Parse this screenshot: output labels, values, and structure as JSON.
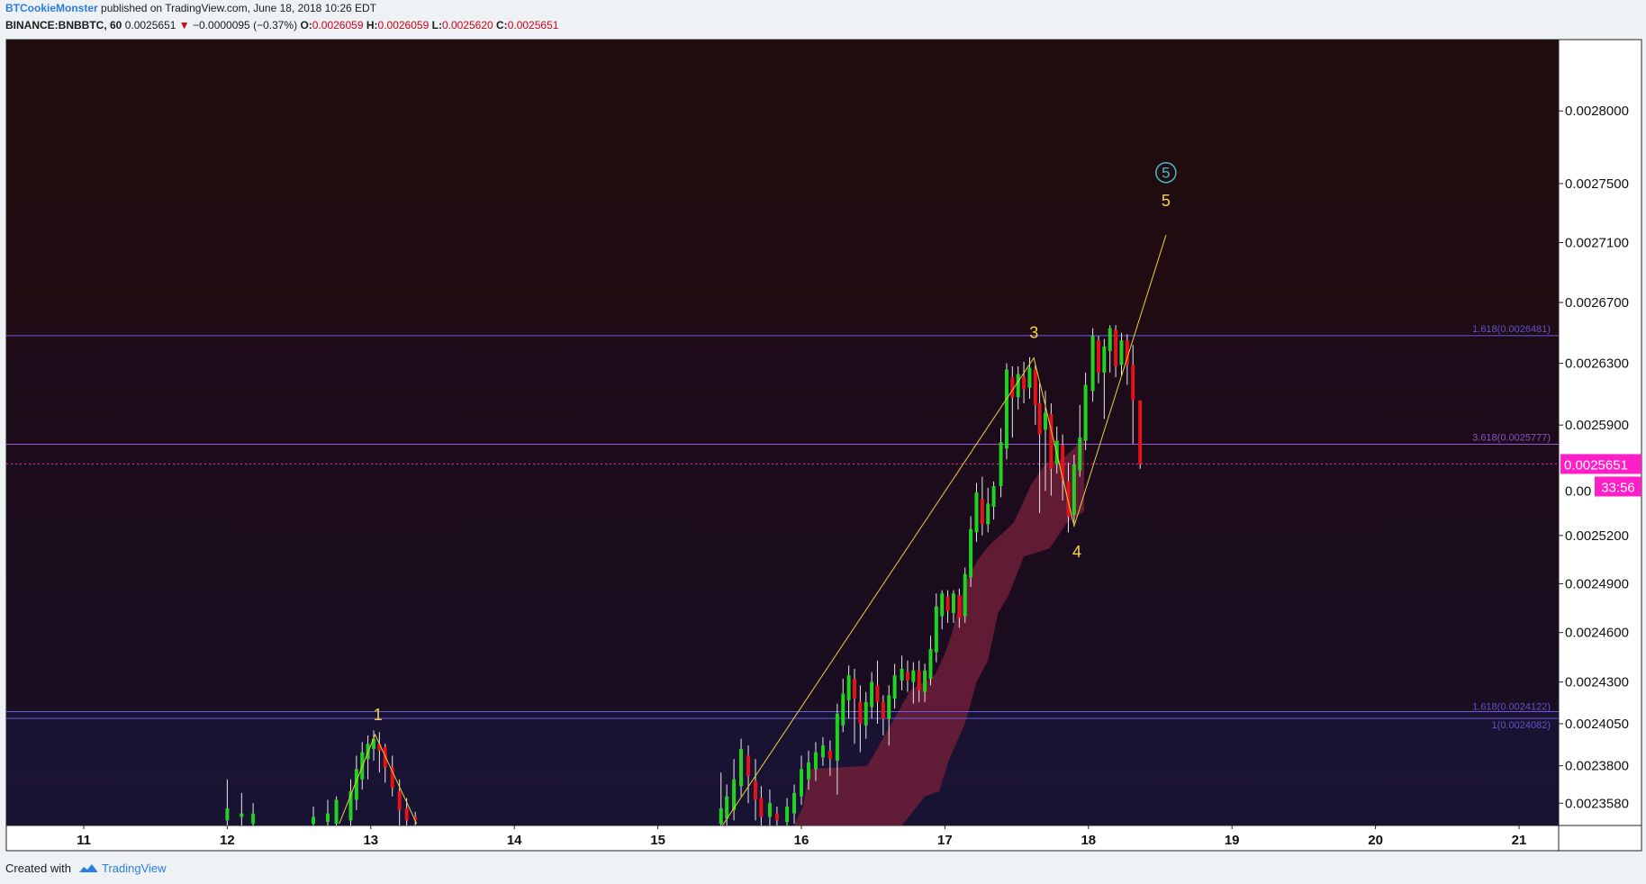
{
  "header": {
    "author": "BTCookieMonster",
    "published_text": "published on TradingView.com, June 18, 2018 10:26 EDT"
  },
  "symbol_line": {
    "symbol": "BINANCE:BNBBTC, 60",
    "last": "0.0025651",
    "change": "−0.0000095 (−0.37%)",
    "open_label": "O:",
    "open": "0.0026059",
    "high_label": "H:",
    "high": "0.0026059",
    "low_label": "L:",
    "low": "0.0025620",
    "close_label": "C:",
    "close": "0.0025651",
    "arrow": "▼"
  },
  "footer": {
    "created_with": "Created with",
    "brand": "TradingView"
  },
  "colors": {
    "up": "#22d122",
    "down": "#e3121b",
    "neutral": "#e8e8e8",
    "wave_line": "#e9d236",
    "wave_label": "#f5d442",
    "circled_label": "#49b9c8",
    "fib_line": "#6a5ae0",
    "fib_line_2": "#9b59d0",
    "price_tag": "#ff1ec8",
    "cloud": "#6e1f3a"
  },
  "chart_data": {
    "type": "candlestick",
    "instrument": "BINANCE:BNBBTC",
    "interval": "60",
    "x_axis": {
      "ticks": [
        "11",
        "12",
        "13",
        "14",
        "15",
        "16",
        "17",
        "18",
        "19",
        "20",
        "21"
      ],
      "range": [
        10.45,
        21.25
      ]
    },
    "y_axis": {
      "scale": "log",
      "range": [
        0.002345,
        0.00285
      ],
      "ticks": [
        "0.0028000",
        "0.0027500",
        "0.0027100",
        "0.0026700",
        "0.0026300",
        "0.0025900",
        "0.0025200",
        "0.0024900",
        "0.0024600",
        "0.0024300",
        "0.0024050",
        "0.0023800",
        "0.0023580"
      ]
    },
    "last_price": {
      "value": "0.0025651",
      "countdown": "33:56",
      "partial_axis_label": "0.00"
    },
    "fib_levels": [
      {
        "label": "1.618(0.0026481)",
        "value": 0.0026481
      },
      {
        "label": "3.618(0.0025777)",
        "value": 0.0025777
      },
      {
        "label": "1.618(0.0024122)",
        "value": 0.0024122
      },
      {
        "label": "1(0.0024082)",
        "value": 0.0024082
      }
    ],
    "wave_path": [
      {
        "day": 12.78,
        "price": 0.002346
      },
      {
        "day": 13.03,
        "price": 0.0023985
      },
      {
        "day": 13.32,
        "price": 0.002346
      }
    ],
    "wave_path_2": [
      {
        "day": 15.45,
        "price": 0.002345
      },
      {
        "day": 17.62,
        "price": 0.0026335
      },
      {
        "day": 17.9,
        "price": 0.002526
      },
      {
        "day": 18.54,
        "price": 0.002715
      }
    ],
    "wave_labels": [
      {
        "text": "1",
        "day": 13.05,
        "price": 0.002407
      },
      {
        "text": "3",
        "day": 17.62,
        "price": 0.0026465
      },
      {
        "text": "4",
        "day": 17.92,
        "price": 0.0025065
      },
      {
        "text": "5",
        "day": 18.54,
        "price": 0.0027345
      }
    ],
    "circled_label": {
      "text": "5",
      "day": 18.54,
      "price": 0.0027575
    },
    "candles": [
      {
        "day": 12.0,
        "open": 0.002348,
        "close": 0.002355,
        "high": 0.002372,
        "low": 0.002345
      },
      {
        "day": 12.1,
        "open": 0.00235,
        "close": 0.002352,
        "high": 0.002364,
        "low": 0.002345
      },
      {
        "day": 12.18,
        "open": 0.002346,
        "close": 0.002352,
        "high": 0.002358,
        "low": 0.002345
      },
      {
        "day": 12.6,
        "open": 0.002346,
        "close": 0.00235,
        "high": 0.002356,
        "low": 0.002345
      },
      {
        "day": 12.7,
        "open": 0.002347,
        "close": 0.002352,
        "high": 0.00236,
        "low": 0.002345
      },
      {
        "day": 12.76,
        "open": 0.002346,
        "close": 0.00236,
        "high": 0.002362,
        "low": 0.002345
      },
      {
        "day": 12.86,
        "open": 0.002348,
        "close": 0.002365,
        "high": 0.002372,
        "low": 0.002345
      },
      {
        "day": 12.9,
        "open": 0.00236,
        "close": 0.002378,
        "high": 0.002386,
        "low": 0.002354
      },
      {
        "day": 12.94,
        "open": 0.002372,
        "close": 0.002388,
        "high": 0.002394,
        "low": 0.002366
      },
      {
        "day": 12.98,
        "open": 0.002384,
        "close": 0.002393,
        "high": 0.002398,
        "low": 0.002372
      },
      {
        "day": 13.02,
        "open": 0.00239,
        "close": 0.002396,
        "high": 0.002401,
        "low": 0.002383
      },
      {
        "day": 13.06,
        "open": 0.002393,
        "close": 0.002389,
        "high": 0.0024,
        "low": 0.002376
      },
      {
        "day": 13.1,
        "open": 0.002391,
        "close": 0.002379,
        "high": 0.002393,
        "low": 0.00237
      },
      {
        "day": 13.15,
        "open": 0.002379,
        "close": 0.002367,
        "high": 0.002386,
        "low": 0.002362
      },
      {
        "day": 13.2,
        "open": 0.002365,
        "close": 0.002354,
        "high": 0.002372,
        "low": 0.002345
      },
      {
        "day": 13.25,
        "open": 0.002355,
        "close": 0.002348,
        "high": 0.002361,
        "low": 0.002345
      },
      {
        "day": 13.31,
        "open": 0.00235,
        "close": 0.002348,
        "high": 0.002353,
        "low": 0.002345
      },
      {
        "day": 15.44,
        "open": 0.002346,
        "close": 0.002355,
        "high": 0.002376,
        "low": 0.002345
      },
      {
        "day": 15.48,
        "open": 0.002349,
        "close": 0.002362,
        "high": 0.002369,
        "low": 0.002345
      },
      {
        "day": 15.53,
        "open": 0.002354,
        "close": 0.002372,
        "high": 0.002384,
        "low": 0.002348
      },
      {
        "day": 15.58,
        "open": 0.002368,
        "close": 0.00239,
        "high": 0.002396,
        "low": 0.002362
      },
      {
        "day": 15.63,
        "open": 0.002386,
        "close": 0.002374,
        "high": 0.002392,
        "low": 0.002358
      },
      {
        "day": 15.68,
        "open": 0.002371,
        "close": 0.00236,
        "high": 0.002384,
        "low": 0.002348
      },
      {
        "day": 15.72,
        "open": 0.002361,
        "close": 0.00235,
        "high": 0.002368,
        "low": 0.002345
      },
      {
        "day": 15.78,
        "open": 0.00235,
        "close": 0.002358,
        "high": 0.002366,
        "low": 0.002345
      },
      {
        "day": 15.83,
        "open": 0.002352,
        "close": 0.002348,
        "high": 0.002356,
        "low": 0.002345
      },
      {
        "day": 15.9,
        "open": 0.002347,
        "close": 0.002356,
        "high": 0.002361,
        "low": 0.002345
      },
      {
        "day": 15.95,
        "open": 0.002352,
        "close": 0.002364,
        "high": 0.002369,
        "low": 0.002346
      },
      {
        "day": 16.0,
        "open": 0.002362,
        "close": 0.002378,
        "high": 0.002386,
        "low": 0.002357
      },
      {
        "day": 16.05,
        "open": 0.002372,
        "close": 0.002382,
        "high": 0.002389,
        "low": 0.002366
      },
      {
        "day": 16.1,
        "open": 0.002378,
        "close": 0.002388,
        "high": 0.002394,
        "low": 0.002371
      },
      {
        "day": 16.15,
        "open": 0.002385,
        "close": 0.002392,
        "high": 0.002397,
        "low": 0.00238
      },
      {
        "day": 16.2,
        "open": 0.002389,
        "close": 0.002384,
        "high": 0.002395,
        "low": 0.002374
      },
      {
        "day": 16.25,
        "open": 0.002383,
        "close": 0.002411,
        "high": 0.002417,
        "low": 0.002363
      },
      {
        "day": 16.29,
        "open": 0.002404,
        "close": 0.002423,
        "high": 0.002432,
        "low": 0.0024
      },
      {
        "day": 16.33,
        "open": 0.002419,
        "close": 0.002434,
        "high": 0.00244,
        "low": 0.002408
      },
      {
        "day": 16.37,
        "open": 0.002432,
        "close": 0.00242,
        "high": 0.002438,
        "low": 0.002393
      },
      {
        "day": 16.41,
        "open": 0.002418,
        "close": 0.002405,
        "high": 0.002428,
        "low": 0.002388
      },
      {
        "day": 16.45,
        "open": 0.002404,
        "close": 0.002418,
        "high": 0.002424,
        "low": 0.002396
      },
      {
        "day": 16.49,
        "open": 0.002415,
        "close": 0.00243,
        "high": 0.002436,
        "low": 0.002408
      },
      {
        "day": 16.53,
        "open": 0.002428,
        "close": 0.002418,
        "high": 0.002443,
        "low": 0.002405
      },
      {
        "day": 16.57,
        "open": 0.002418,
        "close": 0.002408,
        "high": 0.002422,
        "low": 0.002398
      },
      {
        "day": 16.61,
        "open": 0.002408,
        "close": 0.002422,
        "high": 0.002428,
        "low": 0.002392
      },
      {
        "day": 16.65,
        "open": 0.00242,
        "close": 0.002434,
        "high": 0.002441,
        "low": 0.002414
      },
      {
        "day": 16.7,
        "open": 0.002431,
        "close": 0.002438,
        "high": 0.002446,
        "low": 0.002425
      },
      {
        "day": 16.74,
        "open": 0.002436,
        "close": 0.002431,
        "high": 0.002443,
        "low": 0.002424
      },
      {
        "day": 16.78,
        "open": 0.00243,
        "close": 0.002437,
        "high": 0.002442,
        "low": 0.002417
      },
      {
        "day": 16.82,
        "open": 0.002437,
        "close": 0.002425,
        "high": 0.002443,
        "low": 0.002418
      },
      {
        "day": 16.86,
        "open": 0.002424,
        "close": 0.002437,
        "high": 0.002441,
        "low": 0.002418
      },
      {
        "day": 16.9,
        "open": 0.002432,
        "close": 0.00245,
        "high": 0.002458,
        "low": 0.002428
      },
      {
        "day": 16.94,
        "open": 0.002448,
        "close": 0.002476,
        "high": 0.002484,
        "low": 0.002442
      },
      {
        "day": 16.98,
        "open": 0.00247,
        "close": 0.002484,
        "high": 0.002486,
        "low": 0.002462
      },
      {
        "day": 17.02,
        "open": 0.002482,
        "close": 0.002473,
        "high": 0.002486,
        "low": 0.002466
      },
      {
        "day": 17.06,
        "open": 0.002472,
        "close": 0.002484,
        "high": 0.002486,
        "low": 0.002466
      },
      {
        "day": 17.1,
        "open": 0.002483,
        "close": 0.002469,
        "high": 0.002487,
        "low": 0.002463
      },
      {
        "day": 17.14,
        "open": 0.00247,
        "close": 0.002496,
        "high": 0.0025,
        "low": 0.002466
      },
      {
        "day": 17.18,
        "open": 0.002494,
        "close": 0.002524,
        "high": 0.002532,
        "low": 0.002488
      },
      {
        "day": 17.22,
        "open": 0.002522,
        "close": 0.002547,
        "high": 0.002553,
        "low": 0.002516
      },
      {
        "day": 17.26,
        "open": 0.002543,
        "close": 0.002527,
        "high": 0.002557,
        "low": 0.00252
      },
      {
        "day": 17.3,
        "open": 0.002527,
        "close": 0.00254,
        "high": 0.00255,
        "low": 0.002522
      },
      {
        "day": 17.34,
        "open": 0.002538,
        "close": 0.002551,
        "high": 0.002554,
        "low": 0.00253
      },
      {
        "day": 17.39,
        "open": 0.002551,
        "close": 0.002579,
        "high": 0.002588,
        "low": 0.002544
      },
      {
        "day": 17.43,
        "open": 0.002575,
        "close": 0.002626,
        "high": 0.00263,
        "low": 0.002568
      },
      {
        "day": 17.47,
        "open": 0.002621,
        "close": 0.002608,
        "high": 0.002628,
        "low": 0.002582
      },
      {
        "day": 17.51,
        "open": 0.002608,
        "close": 0.002623,
        "high": 0.002628,
        "low": 0.0026
      },
      {
        "day": 17.55,
        "open": 0.002621,
        "close": 0.002613,
        "high": 0.002631,
        "low": 0.002604
      },
      {
        "day": 17.59,
        "open": 0.002614,
        "close": 0.002627,
        "high": 0.002634,
        "low": 0.002607
      },
      {
        "day": 17.63,
        "open": 0.002626,
        "close": 0.002603,
        "high": 0.002629,
        "low": 0.00259
      },
      {
        "day": 17.66,
        "open": 0.002604,
        "close": 0.002584,
        "high": 0.002617,
        "low": 0.002534
      },
      {
        "day": 17.7,
        "open": 0.002587,
        "close": 0.002598,
        "high": 0.002612,
        "low": 0.002548
      },
      {
        "day": 17.74,
        "open": 0.002597,
        "close": 0.002562,
        "high": 0.002604,
        "low": 0.002545
      },
      {
        "day": 17.78,
        "open": 0.002565,
        "close": 0.00258,
        "high": 0.002589,
        "low": 0.002559
      },
      {
        "day": 17.82,
        "open": 0.002577,
        "close": 0.002555,
        "high": 0.002584,
        "low": 0.002542
      },
      {
        "day": 17.86,
        "open": 0.002554,
        "close": 0.002532,
        "high": 0.002566,
        "low": 0.002522
      },
      {
        "day": 17.9,
        "open": 0.002533,
        "close": 0.002565,
        "high": 0.002571,
        "low": 0.002528
      },
      {
        "day": 17.94,
        "open": 0.002561,
        "close": 0.002582,
        "high": 0.002603,
        "low": 0.002557
      },
      {
        "day": 17.98,
        "open": 0.00258,
        "close": 0.002616,
        "high": 0.002624,
        "low": 0.002574
      },
      {
        "day": 18.03,
        "open": 0.002612,
        "close": 0.002648,
        "high": 0.002653,
        "low": 0.002605
      },
      {
        "day": 18.07,
        "open": 0.002645,
        "close": 0.002624,
        "high": 0.002648,
        "low": 0.002617
      },
      {
        "day": 18.11,
        "open": 0.002624,
        "close": 0.002641,
        "high": 0.002646,
        "low": 0.002594
      },
      {
        "day": 18.15,
        "open": 0.002638,
        "close": 0.002653,
        "high": 0.002655,
        "low": 0.002624
      },
      {
        "day": 18.19,
        "open": 0.002652,
        "close": 0.002628,
        "high": 0.002655,
        "low": 0.002621
      },
      {
        "day": 18.23,
        "open": 0.002629,
        "close": 0.002645,
        "high": 0.00265,
        "low": 0.002622
      },
      {
        "day": 18.27,
        "open": 0.002645,
        "close": 0.002629,
        "high": 0.002649,
        "low": 0.002616
      },
      {
        "day": 18.31,
        "open": 0.002629,
        "close": 0.002606,
        "high": 0.002642,
        "low": 0.002578
      },
      {
        "day": 18.36,
        "open": 0.0026059,
        "close": 0.0025651,
        "high": 0.0026059,
        "low": 0.002562
      }
    ],
    "cloud": {
      "upper": [
        [
          15.95,
          0.002345
        ],
        [
          16.01,
          0.002356
        ],
        [
          16.06,
          0.002378
        ],
        [
          16.46,
          0.00238
        ],
        [
          16.56,
          0.002395
        ],
        [
          16.76,
          0.002425
        ],
        [
          16.93,
          0.002434
        ],
        [
          17.0,
          0.002447
        ],
        [
          17.05,
          0.00246
        ],
        [
          17.14,
          0.00249
        ],
        [
          17.23,
          0.002505
        ],
        [
          17.31,
          0.002514
        ],
        [
          17.41,
          0.002522
        ],
        [
          17.48,
          0.002528
        ],
        [
          17.6,
          0.002552
        ],
        [
          17.7,
          0.002565
        ],
        [
          17.83,
          0.002569
        ],
        [
          17.93,
          0.002578
        ],
        [
          17.97,
          0.002582
        ]
      ],
      "lower": [
        [
          17.97,
          0.002535
        ],
        [
          17.85,
          0.002528
        ],
        [
          17.73,
          0.002512
        ],
        [
          17.63,
          0.002509
        ],
        [
          17.55,
          0.002507
        ],
        [
          17.44,
          0.002482
        ],
        [
          17.37,
          0.002472
        ],
        [
          17.3,
          0.002443
        ],
        [
          17.22,
          0.00243
        ],
        [
          17.14,
          0.002405
        ],
        [
          17.03,
          0.002384
        ],
        [
          16.96,
          0.002365
        ],
        [
          16.86,
          0.002362
        ],
        [
          16.7,
          0.002345
        ]
      ]
    }
  }
}
